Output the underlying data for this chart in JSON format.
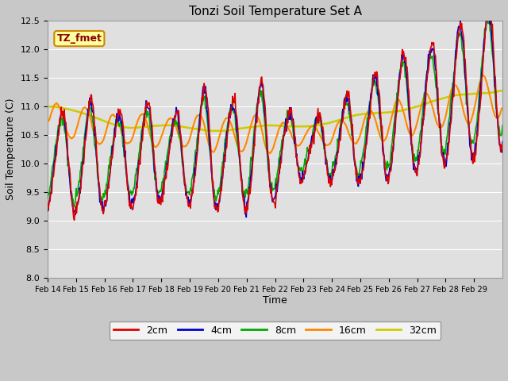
{
  "title": "Tonzi Soil Temperature Set A",
  "xlabel": "Time",
  "ylabel": "Soil Temperature (C)",
  "ylim": [
    8.0,
    12.5
  ],
  "annotation": "TZ_fmet",
  "fig_facecolor": "#c8c8c8",
  "ax_facecolor": "#e0e0e0",
  "grid_color": "#f0f0f0",
  "line_colors": {
    "2cm": "#dd0000",
    "4cm": "#0000cc",
    "8cm": "#00aa00",
    "16cm": "#ff8800",
    "32cm": "#cccc00"
  },
  "xtick_labels": [
    "Feb 14",
    "Feb 15",
    "Feb 16",
    "Feb 17",
    "Feb 18",
    "Feb 19",
    "Feb 20",
    "Feb 21",
    "Feb 22",
    "Feb 23",
    "Feb 24",
    "Feb 25",
    "Feb 26",
    "Feb 27",
    "Feb 28",
    "Feb 29"
  ],
  "n_days": 16
}
